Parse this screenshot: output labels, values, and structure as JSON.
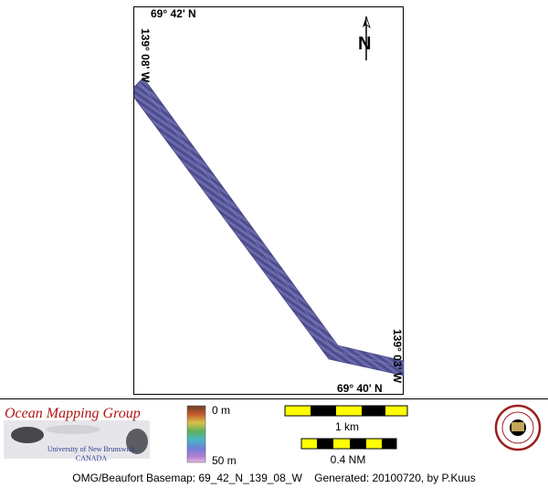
{
  "map": {
    "coord_top": "69° 42' N",
    "coord_bottom": "69° 40' N",
    "coord_left": "139° 08' W",
    "coord_right": "139° 03' W",
    "north_label": "N",
    "swath_color": "#5b5a9e"
  },
  "legend": {
    "depth_min": "0 m",
    "depth_max": "50 m",
    "scale_km": "1 km",
    "scale_nm": "0.4 NM",
    "scale_colors": [
      "#ffff00",
      "#000000"
    ]
  },
  "logo": {
    "title": "Ocean Mapping Group",
    "line1": "University of New Brunswick",
    "line2": "CANADA",
    "seal_text": "UNB"
  },
  "caption": "OMG/Beaufort Basemap: 69_42_N_139_08_W    Generated: 20100720, by P.Kuus"
}
